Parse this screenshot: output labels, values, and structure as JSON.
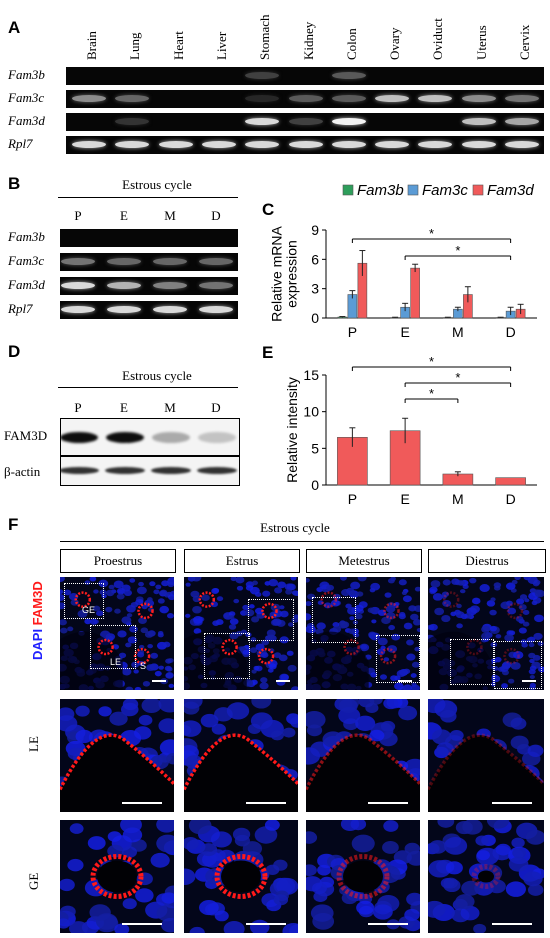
{
  "panels": {
    "A": "A",
    "B": "B",
    "C": "C",
    "D": "D",
    "E": "E",
    "F": "F"
  },
  "panelA": {
    "tissues": [
      "Brain",
      "Lung",
      "Heart",
      "Liver",
      "Stomach",
      "Kidney",
      "Colon",
      "Ovary",
      "Oviduct",
      "Uterus",
      "Cervix"
    ],
    "genes": [
      "Fam3b",
      "Fam3c",
      "Fam3d",
      "Rpl7"
    ]
  },
  "panelB": {
    "title": "Estrous cycle",
    "lanes": [
      "P",
      "E",
      "M",
      "D"
    ],
    "genes": [
      "Fam3b",
      "Fam3c",
      "Fam3d",
      "Rpl7"
    ]
  },
  "panelD": {
    "title": "Estrous cycle",
    "lanes": [
      "P",
      "E",
      "M",
      "D"
    ],
    "rows": [
      "FAM3D",
      "β-actin"
    ]
  },
  "panelF": {
    "title": "Estrous cycle",
    "stages": [
      "Proestrus",
      "Estrus",
      "Metestrus",
      "Diestrus"
    ],
    "stain_dapi": "DAPI",
    "stain_fam3d": "FAM3D",
    "row_LE": "LE",
    "row_GE": "GE",
    "inset_GE": "GE",
    "inset_LE": "LE",
    "inset_S": "S"
  },
  "colors": {
    "fam3b": "#2e9e5b",
    "fam3c": "#5b9bd5",
    "fam3d": "#f05a5a",
    "dapi": "#2020ff",
    "fam3d_stain": "#ff1a1a"
  },
  "chart_data": [
    {
      "id": "C",
      "type": "bar",
      "categories": [
        "P",
        "E",
        "M",
        "D"
      ],
      "series": [
        {
          "name": "Fam3b",
          "values": [
            0.1,
            0.05,
            0.05,
            0.05
          ],
          "errors": [
            0.05,
            0.03,
            0.03,
            0.03
          ]
        },
        {
          "name": "Fam3c",
          "values": [
            2.4,
            1.1,
            0.9,
            0.7
          ],
          "errors": [
            0.4,
            0.4,
            0.2,
            0.4
          ]
        },
        {
          "name": "Fam3d",
          "values": [
            5.6,
            5.1,
            2.4,
            0.9
          ],
          "errors": [
            1.3,
            0.4,
            0.8,
            0.5
          ]
        }
      ],
      "ylabel": "Relative mRNA\nexpression",
      "ylabel_lines": [
        "Relative mRNA",
        "expression"
      ],
      "ylim": [
        0,
        9
      ],
      "yticks": [
        0,
        3,
        6,
        9
      ],
      "significance": [
        {
          "from": "P",
          "to": "D",
          "label": "*"
        },
        {
          "from": "E",
          "to": "D",
          "label": "*"
        }
      ],
      "legend": "top"
    },
    {
      "id": "E",
      "type": "bar",
      "categories": [
        "P",
        "E",
        "M",
        "D"
      ],
      "series": [
        {
          "name": "FAM3D",
          "values": [
            6.5,
            7.4,
            1.5,
            1.0
          ],
          "errors": [
            1.3,
            1.7,
            0.3,
            0.0
          ]
        }
      ],
      "ylabel": "Relative intensity",
      "ylim": [
        0,
        15
      ],
      "yticks": [
        0,
        5,
        10,
        15
      ],
      "significance": [
        {
          "from": "P",
          "to": "D",
          "label": "*"
        },
        {
          "from": "E",
          "to": "D",
          "label": "*"
        },
        {
          "from": "E",
          "to": "M",
          "label": "*"
        }
      ]
    }
  ]
}
